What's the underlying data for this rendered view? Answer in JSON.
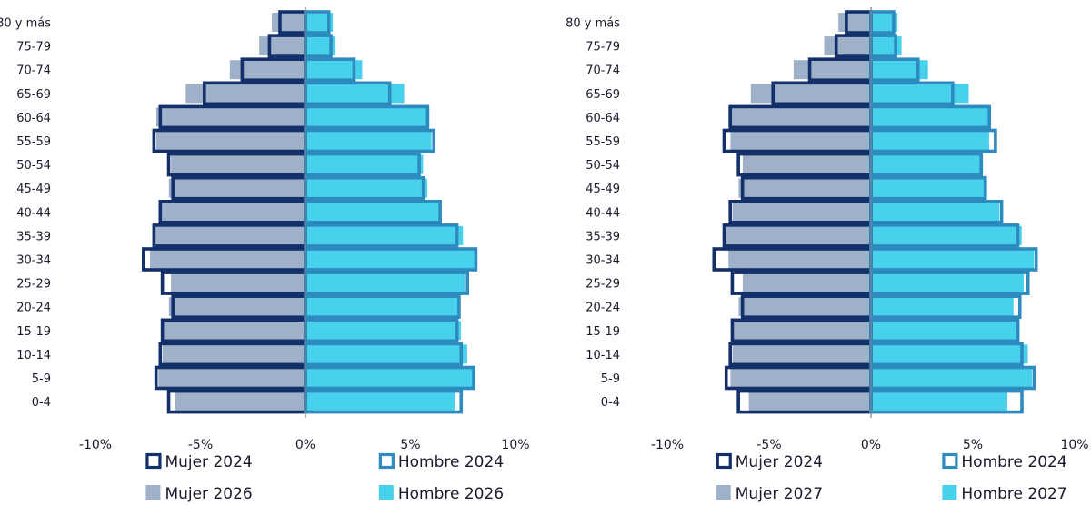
{
  "colors": {
    "mujer_outline": "#13306b",
    "hombre_outline": "#2e8bbf",
    "mujer_fill": "#9fb0c9",
    "hombre_fill": "#48d1ec",
    "zero_line": "#7a7f8a"
  },
  "chart_data": [
    {
      "type": "bar",
      "orientation": "horizontal",
      "subtype": "population-pyramid",
      "categories": [
        "0-4",
        "5-9",
        "10-14",
        "15-19",
        "20-24",
        "25-29",
        "30-34",
        "35-39",
        "40-44",
        "45-49",
        "50-54",
        "55-59",
        "60-64",
        "65-69",
        "70-74",
        "75-79",
        "80 y más"
      ],
      "xlim": [
        -10,
        10
      ],
      "x_ticks": [
        -10,
        -5,
        0,
        5,
        10
      ],
      "x_tick_labels": [
        "-10%",
        "-5%",
        "0%",
        "5%",
        "10%"
      ],
      "series": [
        {
          "name": "Mujer 2026",
          "style": "fill",
          "side": "left",
          "values": [
            6.2,
            7.0,
            6.8,
            6.8,
            6.5,
            6.4,
            7.4,
            7.2,
            6.9,
            6.5,
            6.4,
            7.1,
            7.1,
            5.7,
            3.6,
            2.2,
            1.6
          ]
        },
        {
          "name": "Hombre 2026",
          "style": "fill",
          "side": "right",
          "values": [
            7.1,
            8.0,
            7.7,
            7.4,
            7.3,
            7.6,
            8.1,
            7.5,
            6.4,
            5.8,
            5.6,
            6.0,
            5.9,
            4.7,
            2.7,
            1.4,
            1.3
          ]
        },
        {
          "name": "Mujer 2024",
          "style": "outline",
          "side": "left",
          "values": [
            6.6,
            7.2,
            7.0,
            6.9,
            6.4,
            6.9,
            7.8,
            7.3,
            7.0,
            6.4,
            6.6,
            7.3,
            7.0,
            4.9,
            3.1,
            1.8,
            1.3
          ]
        },
        {
          "name": "Hombre 2024",
          "style": "outline",
          "side": "right",
          "values": [
            7.5,
            8.1,
            7.5,
            7.3,
            7.4,
            7.8,
            8.2,
            7.3,
            6.5,
            5.7,
            5.5,
            6.2,
            5.9,
            4.1,
            2.4,
            1.3,
            1.2
          ]
        }
      ],
      "legend": {
        "position": "bottom",
        "entries": [
          "Mujer 2024",
          "Hombre 2024",
          "Mujer 2026",
          "Hombre 2026"
        ]
      }
    },
    {
      "type": "bar",
      "orientation": "horizontal",
      "subtype": "population-pyramid",
      "categories": [
        "0-4",
        "5-9",
        "10-14",
        "15-19",
        "20-24",
        "25-29",
        "30-34",
        "35-39",
        "40-44",
        "45-49",
        "50-54",
        "55-59",
        "60-64",
        "65-69",
        "70-74",
        "75-79",
        "80 y más"
      ],
      "xlim": [
        -10,
        10
      ],
      "x_ticks": [
        -10,
        -5,
        0,
        5,
        10
      ],
      "x_tick_labels": [
        "-10%",
        "-5%",
        "0%",
        "5%",
        "10%"
      ],
      "series": [
        {
          "name": "Mujer 2027",
          "style": "fill",
          "side": "left",
          "values": [
            6.0,
            6.9,
            6.8,
            6.8,
            6.5,
            6.3,
            7.0,
            7.1,
            6.8,
            6.5,
            6.3,
            6.9,
            7.0,
            5.9,
            3.8,
            2.3,
            1.6
          ]
        },
        {
          "name": "Hombre 2027",
          "style": "fill",
          "side": "right",
          "values": [
            6.7,
            7.9,
            7.7,
            7.3,
            7.0,
            7.5,
            8.0,
            7.4,
            6.3,
            5.7,
            5.5,
            5.8,
            5.9,
            4.8,
            2.8,
            1.5,
            1.3
          ]
        },
        {
          "name": "Mujer 2024",
          "style": "outline",
          "side": "left",
          "values": [
            6.6,
            7.2,
            7.0,
            6.9,
            6.4,
            6.9,
            7.8,
            7.3,
            7.0,
            6.4,
            6.6,
            7.3,
            7.0,
            4.9,
            3.1,
            1.8,
            1.3
          ]
        },
        {
          "name": "Hombre 2024",
          "style": "outline",
          "side": "right",
          "values": [
            7.5,
            8.1,
            7.5,
            7.3,
            7.4,
            7.8,
            8.2,
            7.3,
            6.5,
            5.7,
            5.5,
            6.2,
            5.9,
            4.1,
            2.4,
            1.3,
            1.2
          ]
        }
      ],
      "legend": {
        "position": "bottom",
        "entries": [
          "Mujer 2024",
          "Hombre 2024",
          "Mujer 2027",
          "Hombre 2027"
        ]
      }
    }
  ]
}
